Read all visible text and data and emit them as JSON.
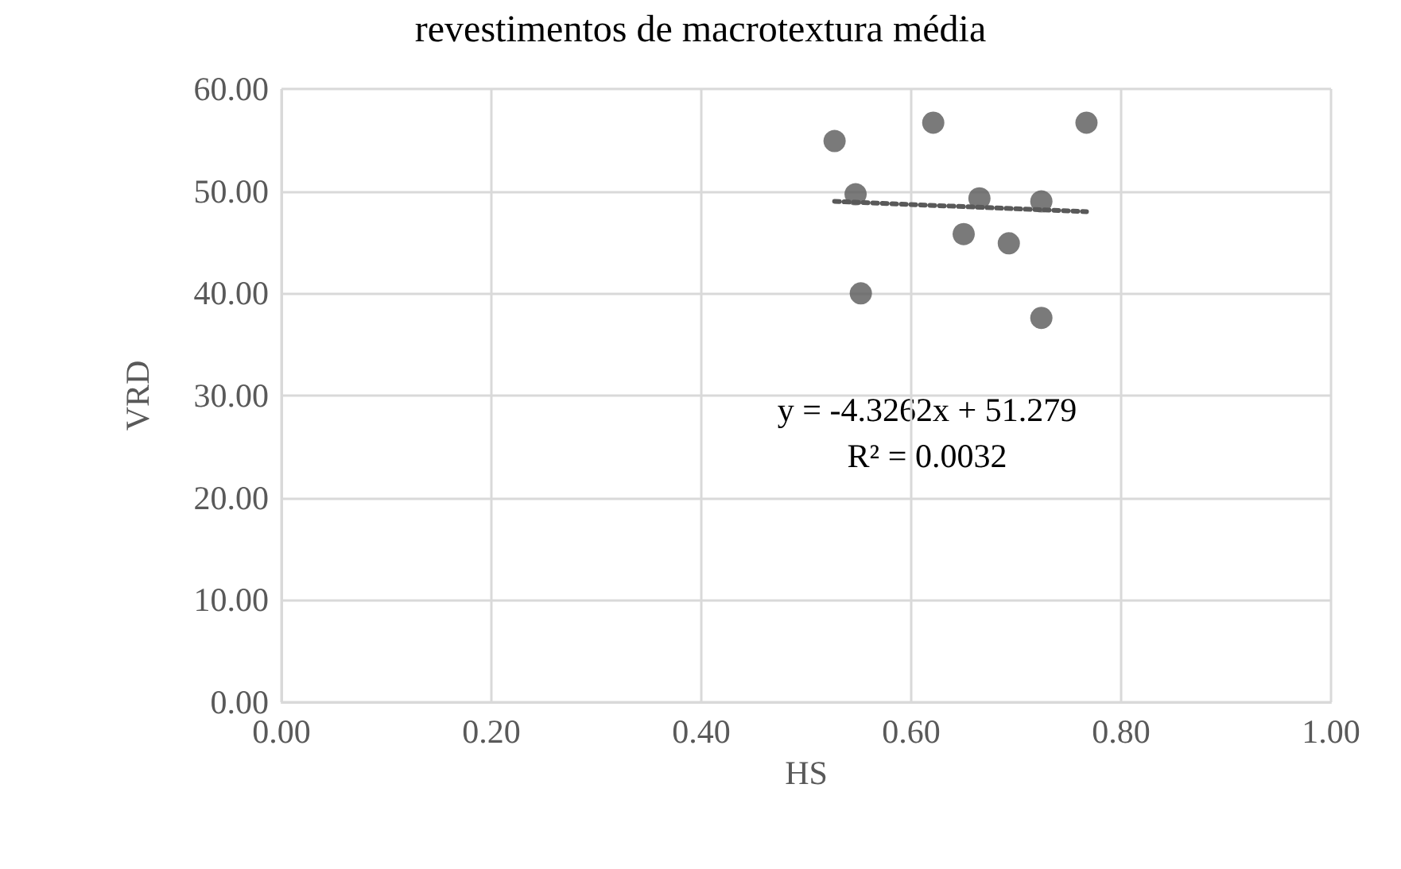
{
  "chart_data": {
    "type": "scatter",
    "title": "revestimentos de macrotextura média",
    "xlabel": "HS",
    "ylabel": "VRD",
    "xlim": [
      0,
      1
    ],
    "ylim": [
      0,
      60
    ],
    "xticks": [
      {
        "value": 0,
        "label": "0.00"
      },
      {
        "value": 0.2,
        "label": "0.20"
      },
      {
        "value": 0.4,
        "label": "0.40"
      },
      {
        "value": 0.6,
        "label": "0.60"
      },
      {
        "value": 0.8,
        "label": "0.80"
      },
      {
        "value": 1,
        "label": "1.00"
      }
    ],
    "yticks": [
      {
        "value": 0,
        "label": "0.00"
      },
      {
        "value": 10,
        "label": "10.00"
      },
      {
        "value": 20,
        "label": "20.00"
      },
      {
        "value": 30,
        "label": "30.00"
      },
      {
        "value": 40,
        "label": "40.00"
      },
      {
        "value": 50,
        "label": "50.00"
      },
      {
        "value": 60,
        "label": "60.00"
      }
    ],
    "grid": true,
    "marker": "circle",
    "series": [
      {
        "type": "scatter",
        "color": "#595959",
        "x": [
          0.527,
          0.621,
          0.767,
          0.547,
          0.665,
          0.724,
          0.65,
          0.693,
          0.552,
          0.724
        ],
        "values": [
          54.9,
          56.7,
          56.7,
          49.7,
          49.3,
          49.0,
          45.8,
          44.9,
          40.0,
          37.6
        ]
      },
      {
        "type": "line",
        "color": "#595959",
        "line_style": "dotted",
        "marker": "none",
        "x": [
          0.527,
          0.767
        ],
        "values": [
          49.0,
          48.0
        ]
      }
    ],
    "annotations": [
      "y = -4.3262x + 51.279",
      "R² = 0.0032"
    ]
  }
}
